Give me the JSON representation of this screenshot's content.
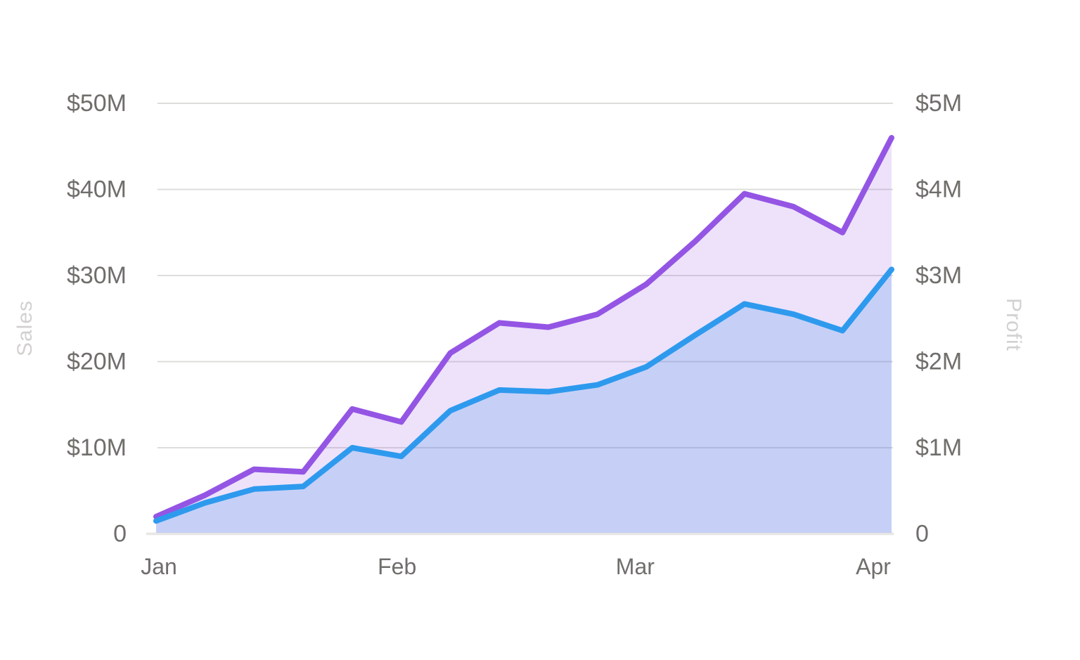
{
  "chart_data": {
    "type": "area",
    "title": "",
    "subtitle": "",
    "legend": "none",
    "grid": true,
    "x_axis": {
      "tick_labels": [
        "Jan",
        "Feb",
        "Mar",
        "Apr"
      ],
      "points_per_series": 16
    },
    "y_axis_left": {
      "title": "Sales",
      "tick_labels": [
        "$50M",
        "$40M",
        "$30M",
        "$20M",
        "$10M",
        "0"
      ],
      "range": [
        0,
        50
      ],
      "unit": "$M"
    },
    "y_axis_right": {
      "title": "Profit",
      "tick_labels": [
        "$5M",
        "$4M",
        "$3M",
        "$2M",
        "$1M",
        "0"
      ],
      "range": [
        0,
        5
      ],
      "unit": "$M"
    },
    "series": [
      {
        "name": "Sales",
        "axis": "left",
        "line_color": "#2e9aee",
        "fill_color": "rgba(60,145,235,0.22)",
        "values": [
          1.5,
          3.6,
          5.2,
          5.5,
          10,
          9,
          14.3,
          16.7,
          16.5,
          17.3,
          19.4,
          23.1,
          26.7,
          25.5,
          23.6,
          30.7
        ]
      },
      {
        "name": "Profit",
        "axis": "right",
        "line_color": "#9455e4",
        "fill_color": "rgba(148,85,226,0.17)",
        "values": [
          0.2,
          0.45,
          0.75,
          0.72,
          1.45,
          1.3,
          2.1,
          2.45,
          2.4,
          2.55,
          2.9,
          3.4,
          3.95,
          3.8,
          3.5,
          4.6
        ]
      }
    ],
    "colors": {
      "gridline": "#dedddb",
      "zero_line": "#e7e6e4",
      "tick_label": "#6f6e6b",
      "axis_title": "#d2d1cf",
      "background": "#ffffff"
    }
  }
}
